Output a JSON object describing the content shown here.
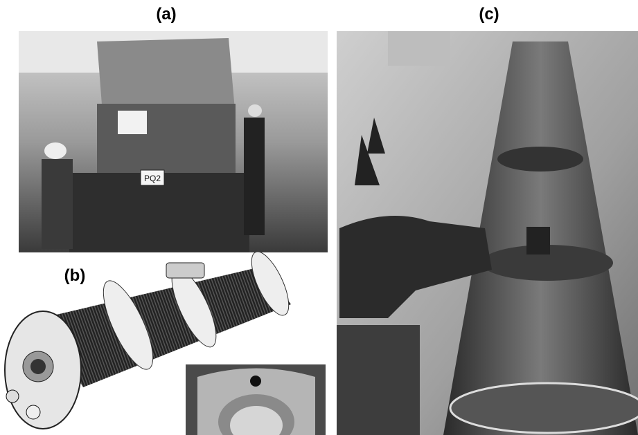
{
  "panels": [
    {
      "label": "(a)",
      "sign": "PQ2"
    },
    {
      "label": "(b)"
    },
    {
      "label": "(c)"
    }
  ]
}
